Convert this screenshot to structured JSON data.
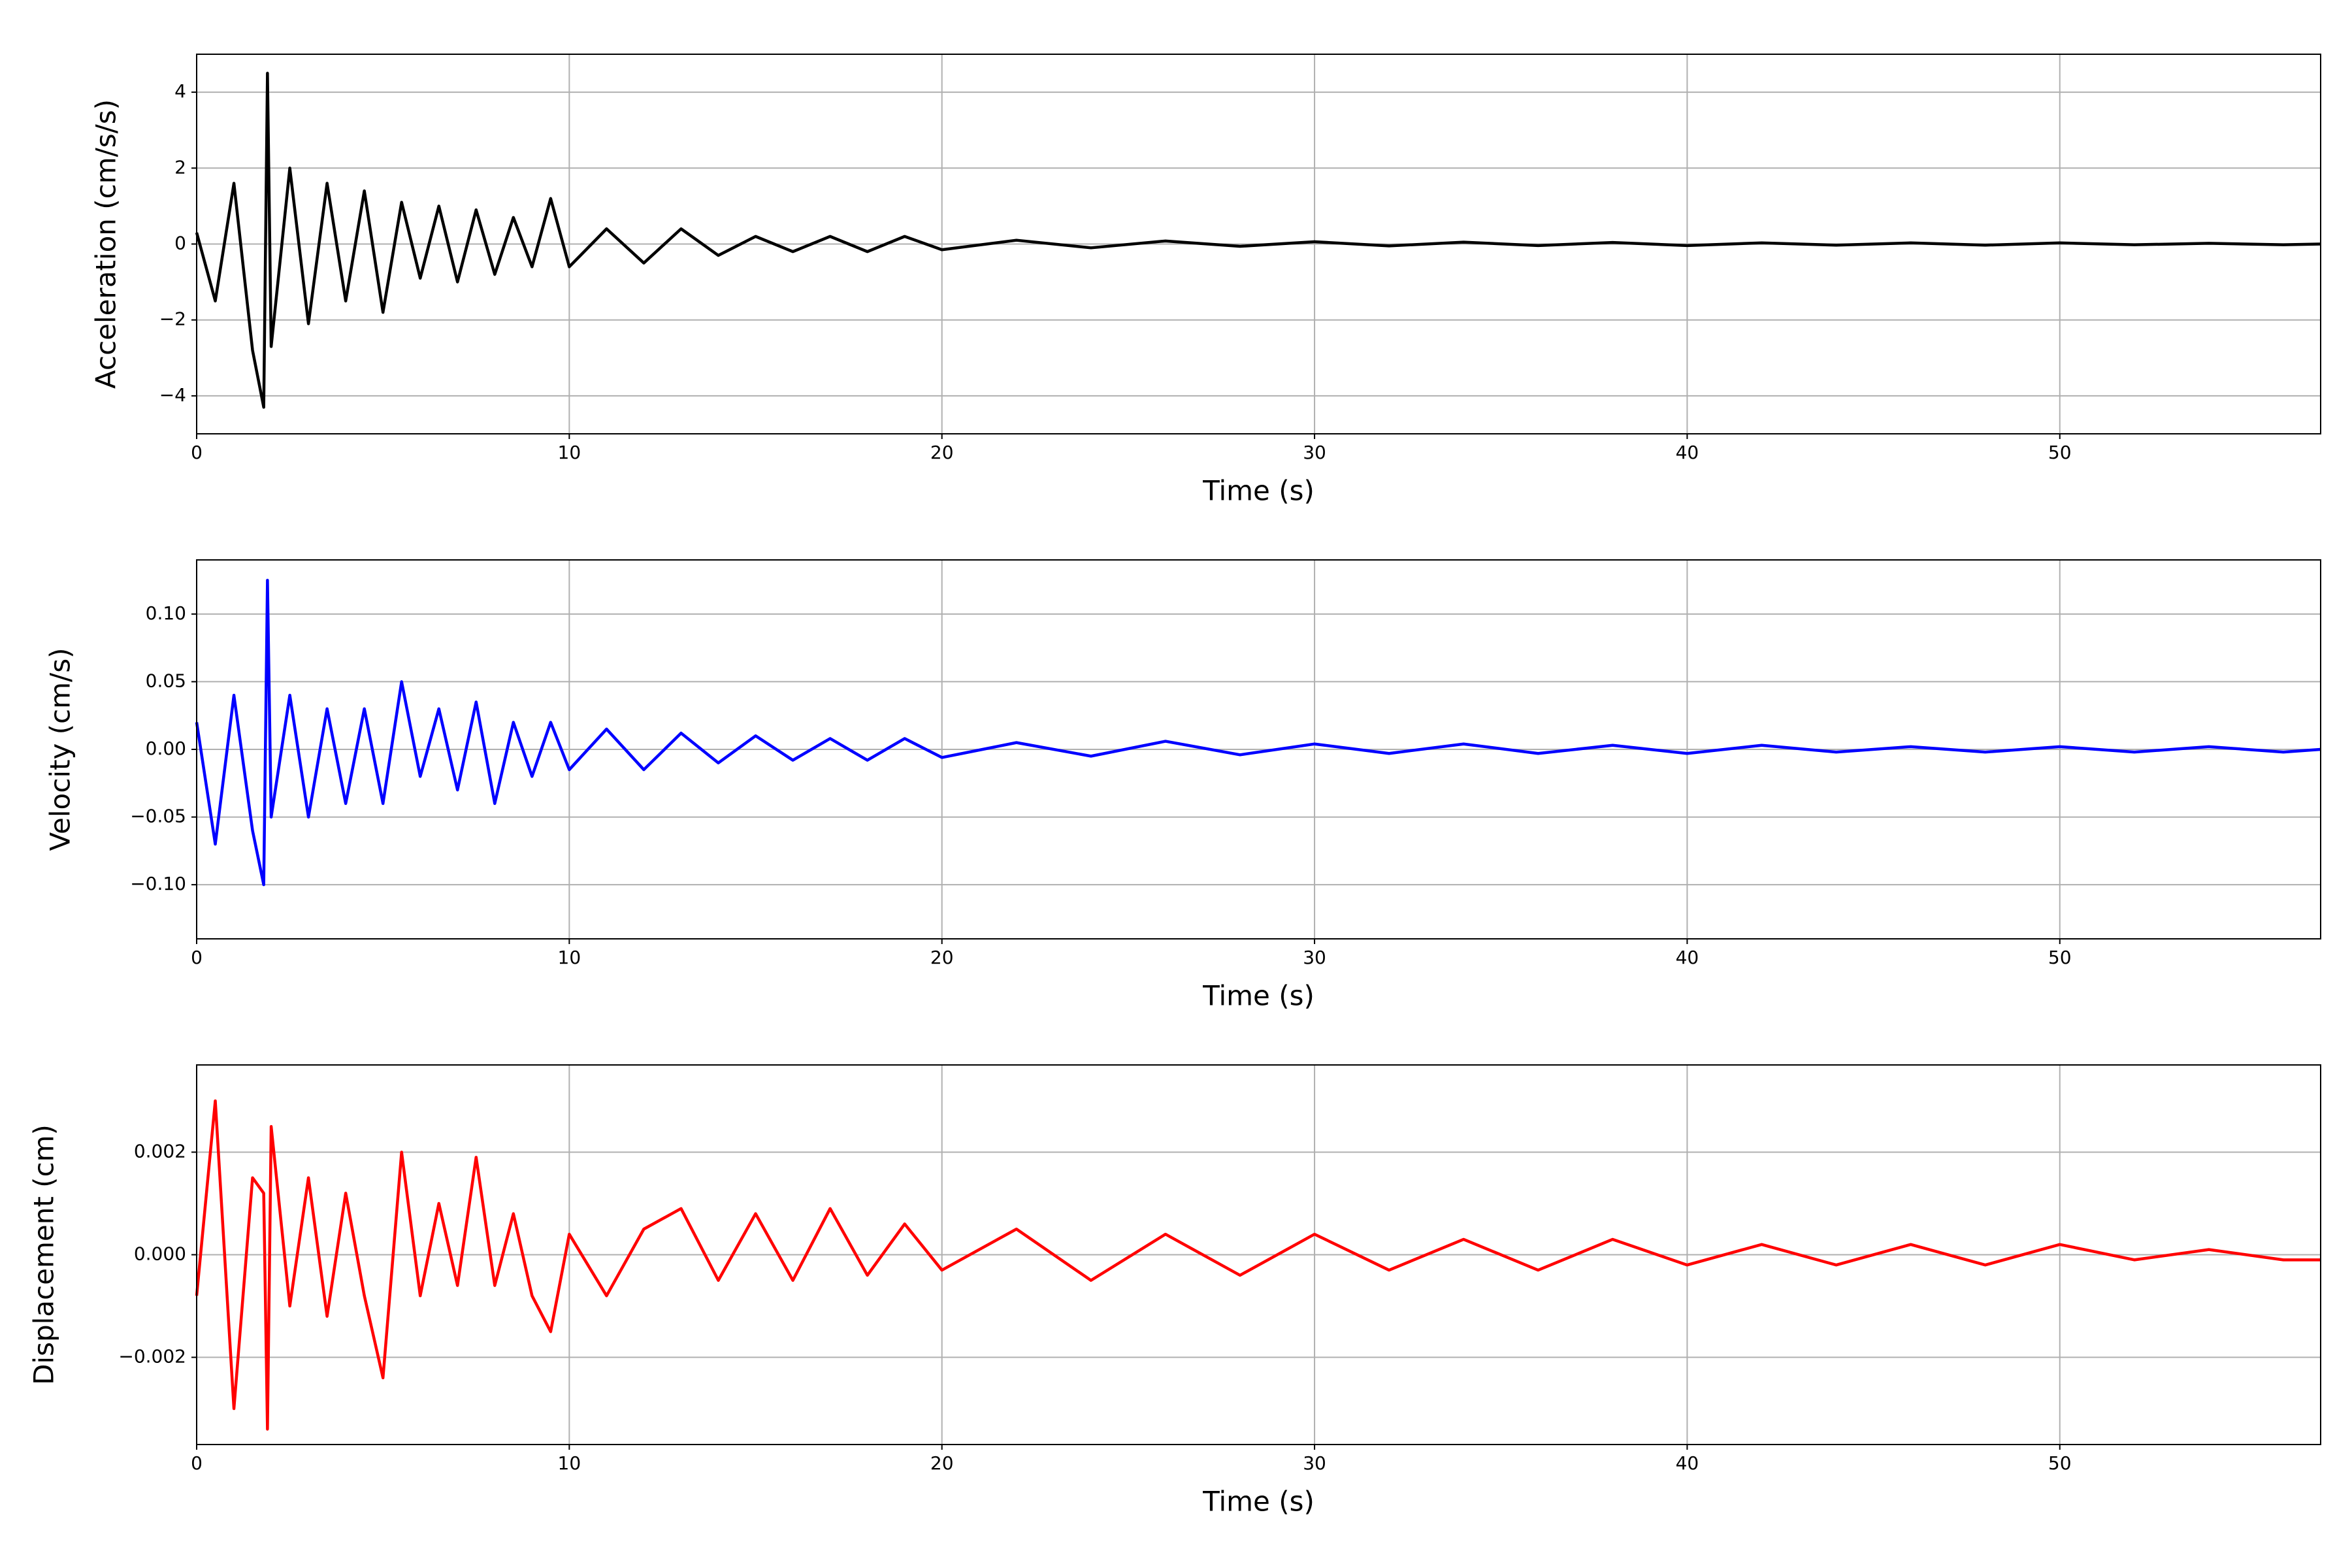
{
  "chart_data": [
    {
      "type": "line",
      "xlabel": "Time (s)",
      "ylabel": "Acceleration (cm/s/s)",
      "color": "#000000",
      "grid": true,
      "xlim": [
        0,
        57
      ],
      "xticks": [
        0,
        10,
        20,
        30,
        40,
        50
      ],
      "ylim": [
        -5,
        5
      ],
      "yticks": [
        {
          "value": -4,
          "label": "−4"
        },
        {
          "value": -2,
          "label": "−2"
        },
        0,
        2,
        4
      ],
      "x": [
        0,
        0.5,
        1,
        1.5,
        1.8,
        1.9,
        2,
        2.5,
        3,
        3.5,
        4,
        4.5,
        5,
        5.5,
        6,
        6.5,
        7,
        7.5,
        8,
        8.5,
        9,
        9.5,
        10,
        11,
        12,
        13,
        14,
        15,
        16,
        17,
        18,
        19,
        20,
        22,
        24,
        26,
        28,
        30,
        32,
        34,
        36,
        38,
        40,
        42,
        44,
        46,
        48,
        50,
        52,
        54,
        56,
        57
      ],
      "values": [
        0.3,
        -1.5,
        1.6,
        -2.8,
        -4.3,
        4.5,
        -2.7,
        2.0,
        -2.1,
        1.6,
        -1.5,
        1.4,
        -1.8,
        1.1,
        -0.9,
        1.0,
        -1.0,
        0.9,
        -0.8,
        0.7,
        -0.6,
        1.2,
        -0.6,
        0.4,
        -0.5,
        0.4,
        -0.3,
        0.2,
        -0.2,
        0.2,
        -0.2,
        0.2,
        -0.15,
        0.1,
        -0.1,
        0.08,
        -0.06,
        0.06,
        -0.05,
        0.05,
        -0.04,
        0.04,
        -0.04,
        0.03,
        -0.03,
        0.03,
        -0.03,
        0.03,
        -0.02,
        0.02,
        -0.02,
        0
      ]
    },
    {
      "type": "line",
      "xlabel": "Time (s)",
      "ylabel": "Velocity (cm/s)",
      "color": "#0000ff",
      "grid": true,
      "xlim": [
        0,
        57
      ],
      "xticks": [
        0,
        10,
        20,
        30,
        40,
        50
      ],
      "ylim": [
        -0.14,
        0.14
      ],
      "yticks": [
        {
          "value": -0.1,
          "label": "−0.10"
        },
        {
          "value": -0.05,
          "label": "−0.05"
        },
        {
          "value": 0,
          "label": "0.00"
        },
        {
          "value": 0.05,
          "label": "0.05"
        },
        {
          "value": 0.1,
          "label": "0.10"
        }
      ],
      "x": [
        0,
        0.5,
        1,
        1.5,
        1.8,
        1.9,
        2,
        2.5,
        3,
        3.5,
        4,
        4.5,
        5,
        5.5,
        6,
        6.5,
        7,
        7.5,
        8,
        8.5,
        9,
        9.5,
        10,
        11,
        12,
        13,
        14,
        15,
        16,
        17,
        18,
        19,
        20,
        22,
        24,
        26,
        28,
        30,
        32,
        34,
        36,
        38,
        40,
        42,
        44,
        46,
        48,
        50,
        52,
        54,
        56,
        57
      ],
      "values": [
        0.02,
        -0.07,
        0.04,
        -0.06,
        -0.1,
        0.125,
        -0.05,
        0.04,
        -0.05,
        0.03,
        -0.04,
        0.03,
        -0.04,
        0.05,
        -0.02,
        0.03,
        -0.03,
        0.035,
        -0.04,
        0.02,
        -0.02,
        0.02,
        -0.015,
        0.015,
        -0.015,
        0.012,
        -0.01,
        0.01,
        -0.008,
        0.008,
        -0.008,
        0.008,
        -0.006,
        0.005,
        -0.005,
        0.006,
        -0.004,
        0.004,
        -0.003,
        0.004,
        -0.003,
        0.003,
        -0.003,
        0.003,
        -0.002,
        0.002,
        -0.002,
        0.002,
        -0.002,
        0.002,
        -0.002,
        0
      ]
    },
    {
      "type": "line",
      "xlabel": "Time (s)",
      "ylabel": "Displacement (cm)",
      "color": "#ff0000",
      "grid": true,
      "xlim": [
        0,
        57
      ],
      "xticks": [
        0,
        10,
        20,
        30,
        40,
        50
      ],
      "ylim": [
        -0.0037,
        0.0037
      ],
      "yticks": [
        {
          "value": -0.002,
          "label": "−0.002"
        },
        {
          "value": 0,
          "label": "0.000"
        },
        {
          "value": 0.002,
          "label": "0.002"
        }
      ],
      "x": [
        0,
        0.5,
        1,
        1.5,
        1.8,
        1.9,
        2,
        2.5,
        3,
        3.5,
        4,
        4.5,
        5,
        5.5,
        6,
        6.5,
        7,
        7.5,
        8,
        8.5,
        9,
        9.5,
        10,
        11,
        12,
        13,
        14,
        15,
        16,
        17,
        18,
        19,
        20,
        22,
        24,
        26,
        28,
        30,
        32,
        34,
        36,
        38,
        40,
        42,
        44,
        46,
        48,
        50,
        52,
        54,
        56,
        57
      ],
      "values": [
        -0.0008,
        0.003,
        -0.003,
        0.0015,
        0.0012,
        -0.0034,
        0.0025,
        -0.001,
        0.0015,
        -0.0012,
        0.0012,
        -0.0008,
        -0.0024,
        0.002,
        -0.0008,
        0.001,
        -0.0006,
        0.0019,
        -0.0006,
        0.0008,
        -0.0008,
        -0.0015,
        0.0004,
        -0.0008,
        0.0005,
        0.0009,
        -0.0005,
        0.0008,
        -0.0005,
        0.0009,
        -0.0004,
        0.0006,
        -0.0003,
        0.0005,
        -0.0005,
        0.0004,
        -0.0004,
        0.0004,
        -0.0003,
        0.0003,
        -0.0003,
        0.0003,
        -0.0002,
        0.0002,
        -0.0002,
        0.0002,
        -0.0002,
        0.0002,
        -0.0001,
        0.0001,
        -0.0001,
        -0.0001
      ]
    }
  ]
}
